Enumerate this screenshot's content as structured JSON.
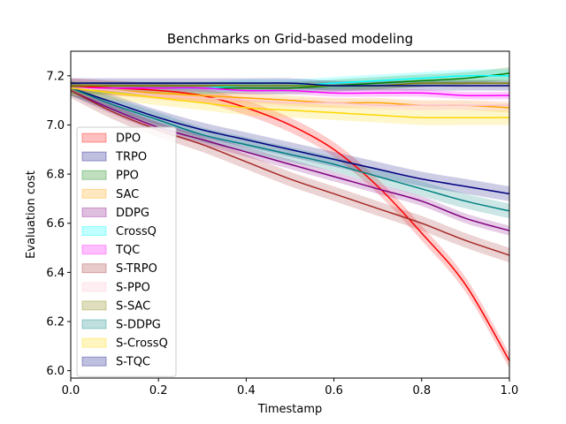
{
  "chart_data": {
    "type": "line",
    "title": "Benchmarks on Grid-based modeling",
    "xlabel": "Timestamp",
    "ylabel": "Evaluation cost",
    "xlim": [
      0.0,
      1.0
    ],
    "ylim": [
      5.97,
      7.3
    ],
    "xticks": [
      "0.0",
      "0.2",
      "0.4",
      "0.6",
      "0.8",
      "1.0"
    ],
    "xtick_values": [
      0.0,
      0.2,
      0.4,
      0.6,
      0.8,
      1.0
    ],
    "yticks": [
      "6.0",
      "6.2",
      "6.4",
      "6.6",
      "6.8",
      "7.0",
      "7.2"
    ],
    "ytick_values": [
      6.0,
      6.2,
      6.4,
      6.6,
      6.8,
      7.0,
      7.2
    ],
    "grid": false,
    "legend_position": "lower-left",
    "x": [
      0.0,
      0.1,
      0.2,
      0.3,
      0.4,
      0.5,
      0.6,
      0.7,
      0.8,
      0.9,
      1.0
    ],
    "series": [
      {
        "name": "DPO",
        "color": "#ff0000",
        "values": [
          7.16,
          7.15,
          7.14,
          7.12,
          7.07,
          7.0,
          6.9,
          6.75,
          6.56,
          6.35,
          6.04
        ],
        "band": 0.03
      },
      {
        "name": "TRPO",
        "color": "#00007f",
        "values": [
          7.15,
          7.09,
          7.03,
          6.98,
          6.94,
          6.9,
          6.86,
          6.82,
          6.78,
          6.75,
          6.72
        ],
        "band": 0.03
      },
      {
        "name": "PPO",
        "color": "#007f00",
        "values": [
          7.15,
          7.15,
          7.15,
          7.15,
          7.15,
          7.15,
          7.16,
          7.17,
          7.18,
          7.19,
          7.21
        ],
        "band": 0.025
      },
      {
        "name": "SAC",
        "color": "#ffa500",
        "values": [
          7.15,
          7.14,
          7.13,
          7.12,
          7.11,
          7.1,
          7.09,
          7.09,
          7.08,
          7.08,
          7.07
        ],
        "band": 0.02
      },
      {
        "name": "DDPG",
        "color": "#800080",
        "values": [
          7.14,
          7.06,
          6.99,
          6.94,
          6.89,
          6.84,
          6.79,
          6.74,
          6.69,
          6.62,
          6.57
        ],
        "band": 0.02
      },
      {
        "name": "CrossQ",
        "color": "#00ffff",
        "values": [
          7.15,
          7.15,
          7.15,
          7.15,
          7.16,
          7.16,
          7.17,
          7.18,
          7.19,
          7.2,
          7.2
        ],
        "band": 0.025
      },
      {
        "name": "TQC",
        "color": "#ff00ff",
        "values": [
          7.15,
          7.15,
          7.15,
          7.15,
          7.14,
          7.14,
          7.13,
          7.13,
          7.13,
          7.12,
          7.12
        ],
        "band": 0.015
      },
      {
        "name": "S-TRPO",
        "color": "#a52a2a",
        "values": [
          7.14,
          7.05,
          6.98,
          6.92,
          6.85,
          6.78,
          6.72,
          6.66,
          6.6,
          6.53,
          6.47
        ],
        "band": 0.03
      },
      {
        "name": "S-PPO",
        "color": "#ffc0cb",
        "values": [
          7.15,
          7.14,
          7.12,
          7.11,
          7.1,
          7.09,
          7.09,
          7.08,
          7.08,
          7.08,
          7.08
        ],
        "band": 0.02
      },
      {
        "name": "S-SAC",
        "color": "#808000",
        "values": [
          7.16,
          7.16,
          7.16,
          7.16,
          7.16,
          7.16,
          7.16,
          7.16,
          7.17,
          7.17,
          7.17
        ],
        "band": 0.015
      },
      {
        "name": "S-DDPG",
        "color": "#008080",
        "values": [
          7.15,
          7.08,
          7.02,
          6.96,
          6.92,
          6.88,
          6.84,
          6.79,
          6.74,
          6.69,
          6.65
        ],
        "band": 0.03
      },
      {
        "name": "S-CrossQ",
        "color": "#ffd700",
        "values": [
          7.15,
          7.13,
          7.11,
          7.09,
          7.07,
          7.06,
          7.05,
          7.04,
          7.03,
          7.03,
          7.03
        ],
        "band": 0.03
      },
      {
        "name": "S-TQC",
        "color": "#000080",
        "values": [
          7.17,
          7.17,
          7.17,
          7.17,
          7.17,
          7.17,
          7.16,
          7.16,
          7.16,
          7.16,
          7.16
        ],
        "band": 0.02
      }
    ]
  }
}
